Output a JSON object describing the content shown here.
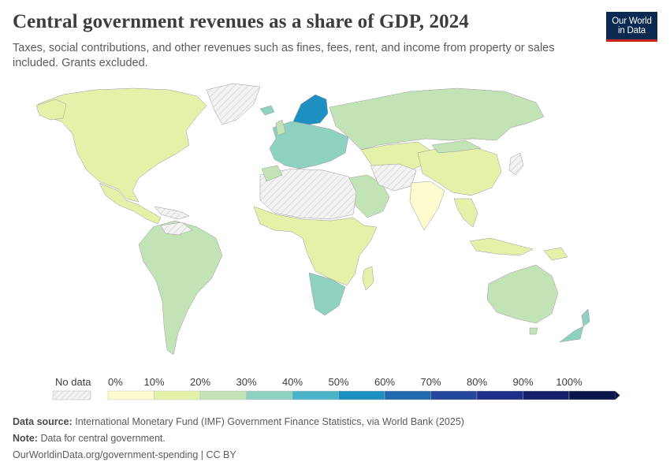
{
  "title": "Central government revenues as a share of GDP, 2024",
  "subtitle": "Taxes, social contributions, and other revenues such as fines, fees, rent, and income from property or sales included. Grants excluded.",
  "logo": {
    "line1": "Our World",
    "line2": "in Data"
  },
  "legend": {
    "no_data_label": "No data",
    "ticks": [
      "0%",
      "10%",
      "20%",
      "30%",
      "40%",
      "50%",
      "60%",
      "70%",
      "80%",
      "90%",
      "100%"
    ],
    "colors": [
      "#fdfccf",
      "#e4f1a9",
      "#c2e3b5",
      "#8fd1c1",
      "#4db4c8",
      "#1e8fc1",
      "#2169ac",
      "#24479b",
      "#1f2f87",
      "#122167",
      "#0a1748"
    ],
    "no_data_color": "#ececec"
  },
  "footer": {
    "source_label": "Data source:",
    "source_text": "International Monetary Fund (IMF) Government Finance Statistics, via World Bank (2025)",
    "note_label": "Note:",
    "note_text": "Data for central government.",
    "url_text": "OurWorldinData.org/government-spending | CC BY"
  },
  "map_colors": {
    "north_america": "#e4f1a9",
    "greenland": "#ececec",
    "central_america": "#e4f1a9",
    "south_america": "#c2e3b5",
    "europe": "#8fd1c1",
    "scandinavia": "#1e8fc1",
    "russia": "#c2e3b5",
    "central_asia": "#e4f1a9",
    "middle_east": "#c2e3b5",
    "no_data_regions": "#ececec",
    "india": "#fdfccf",
    "china": "#e4f1a9",
    "southeast_asia": "#e4f1a9",
    "africa": "#e4f1a9",
    "southern_africa": "#8fd1c1",
    "australia": "#c2e3b5",
    "new_zealand": "#8fd1c1"
  }
}
